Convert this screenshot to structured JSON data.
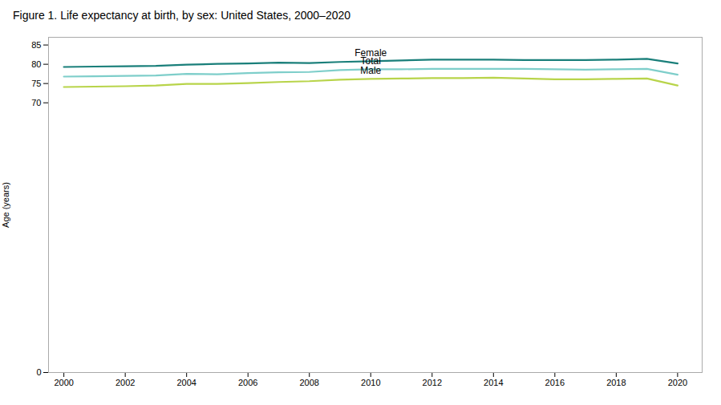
{
  "chart_data": {
    "type": "line",
    "title": "Figure 1. Life expectancy at birth, by sex: United States, 2000–2020",
    "ylabel": "Age (years)",
    "x": [
      2000,
      2001,
      2002,
      2003,
      2004,
      2005,
      2006,
      2007,
      2008,
      2009,
      2010,
      2011,
      2012,
      2013,
      2014,
      2015,
      2016,
      2017,
      2018,
      2019,
      2020
    ],
    "series": [
      {
        "name": "Female",
        "color": "#1a7f7a",
        "values": [
          79.3,
          79.4,
          79.5,
          79.6,
          79.9,
          80.1,
          80.2,
          80.4,
          80.3,
          80.6,
          80.8,
          81.0,
          81.2,
          81.2,
          81.2,
          81.1,
          81.1,
          81.1,
          81.2,
          81.4,
          80.2
        ]
      },
      {
        "name": "Total",
        "color": "#7ececa",
        "values": [
          76.8,
          76.9,
          77.0,
          77.1,
          77.5,
          77.4,
          77.7,
          77.9,
          78.0,
          78.5,
          78.7,
          78.7,
          78.8,
          78.8,
          78.8,
          78.8,
          78.7,
          78.6,
          78.7,
          78.8,
          77.3
        ]
      },
      {
        "name": "Male",
        "color": "#b8d44a",
        "values": [
          74.1,
          74.2,
          74.3,
          74.5,
          74.9,
          74.9,
          75.1,
          75.4,
          75.6,
          76.0,
          76.2,
          76.3,
          76.4,
          76.4,
          76.5,
          76.3,
          76.1,
          76.1,
          76.2,
          76.3,
          74.5
        ]
      }
    ],
    "xlim": [
      1999.5,
      2020.8
    ],
    "xticks": [
      2000,
      2002,
      2004,
      2006,
      2008,
      2010,
      2012,
      2014,
      2016,
      2018,
      2020
    ],
    "ylim": [
      0,
      87
    ],
    "yticks": [
      0,
      70,
      75,
      80,
      85
    ],
    "grid": false
  }
}
